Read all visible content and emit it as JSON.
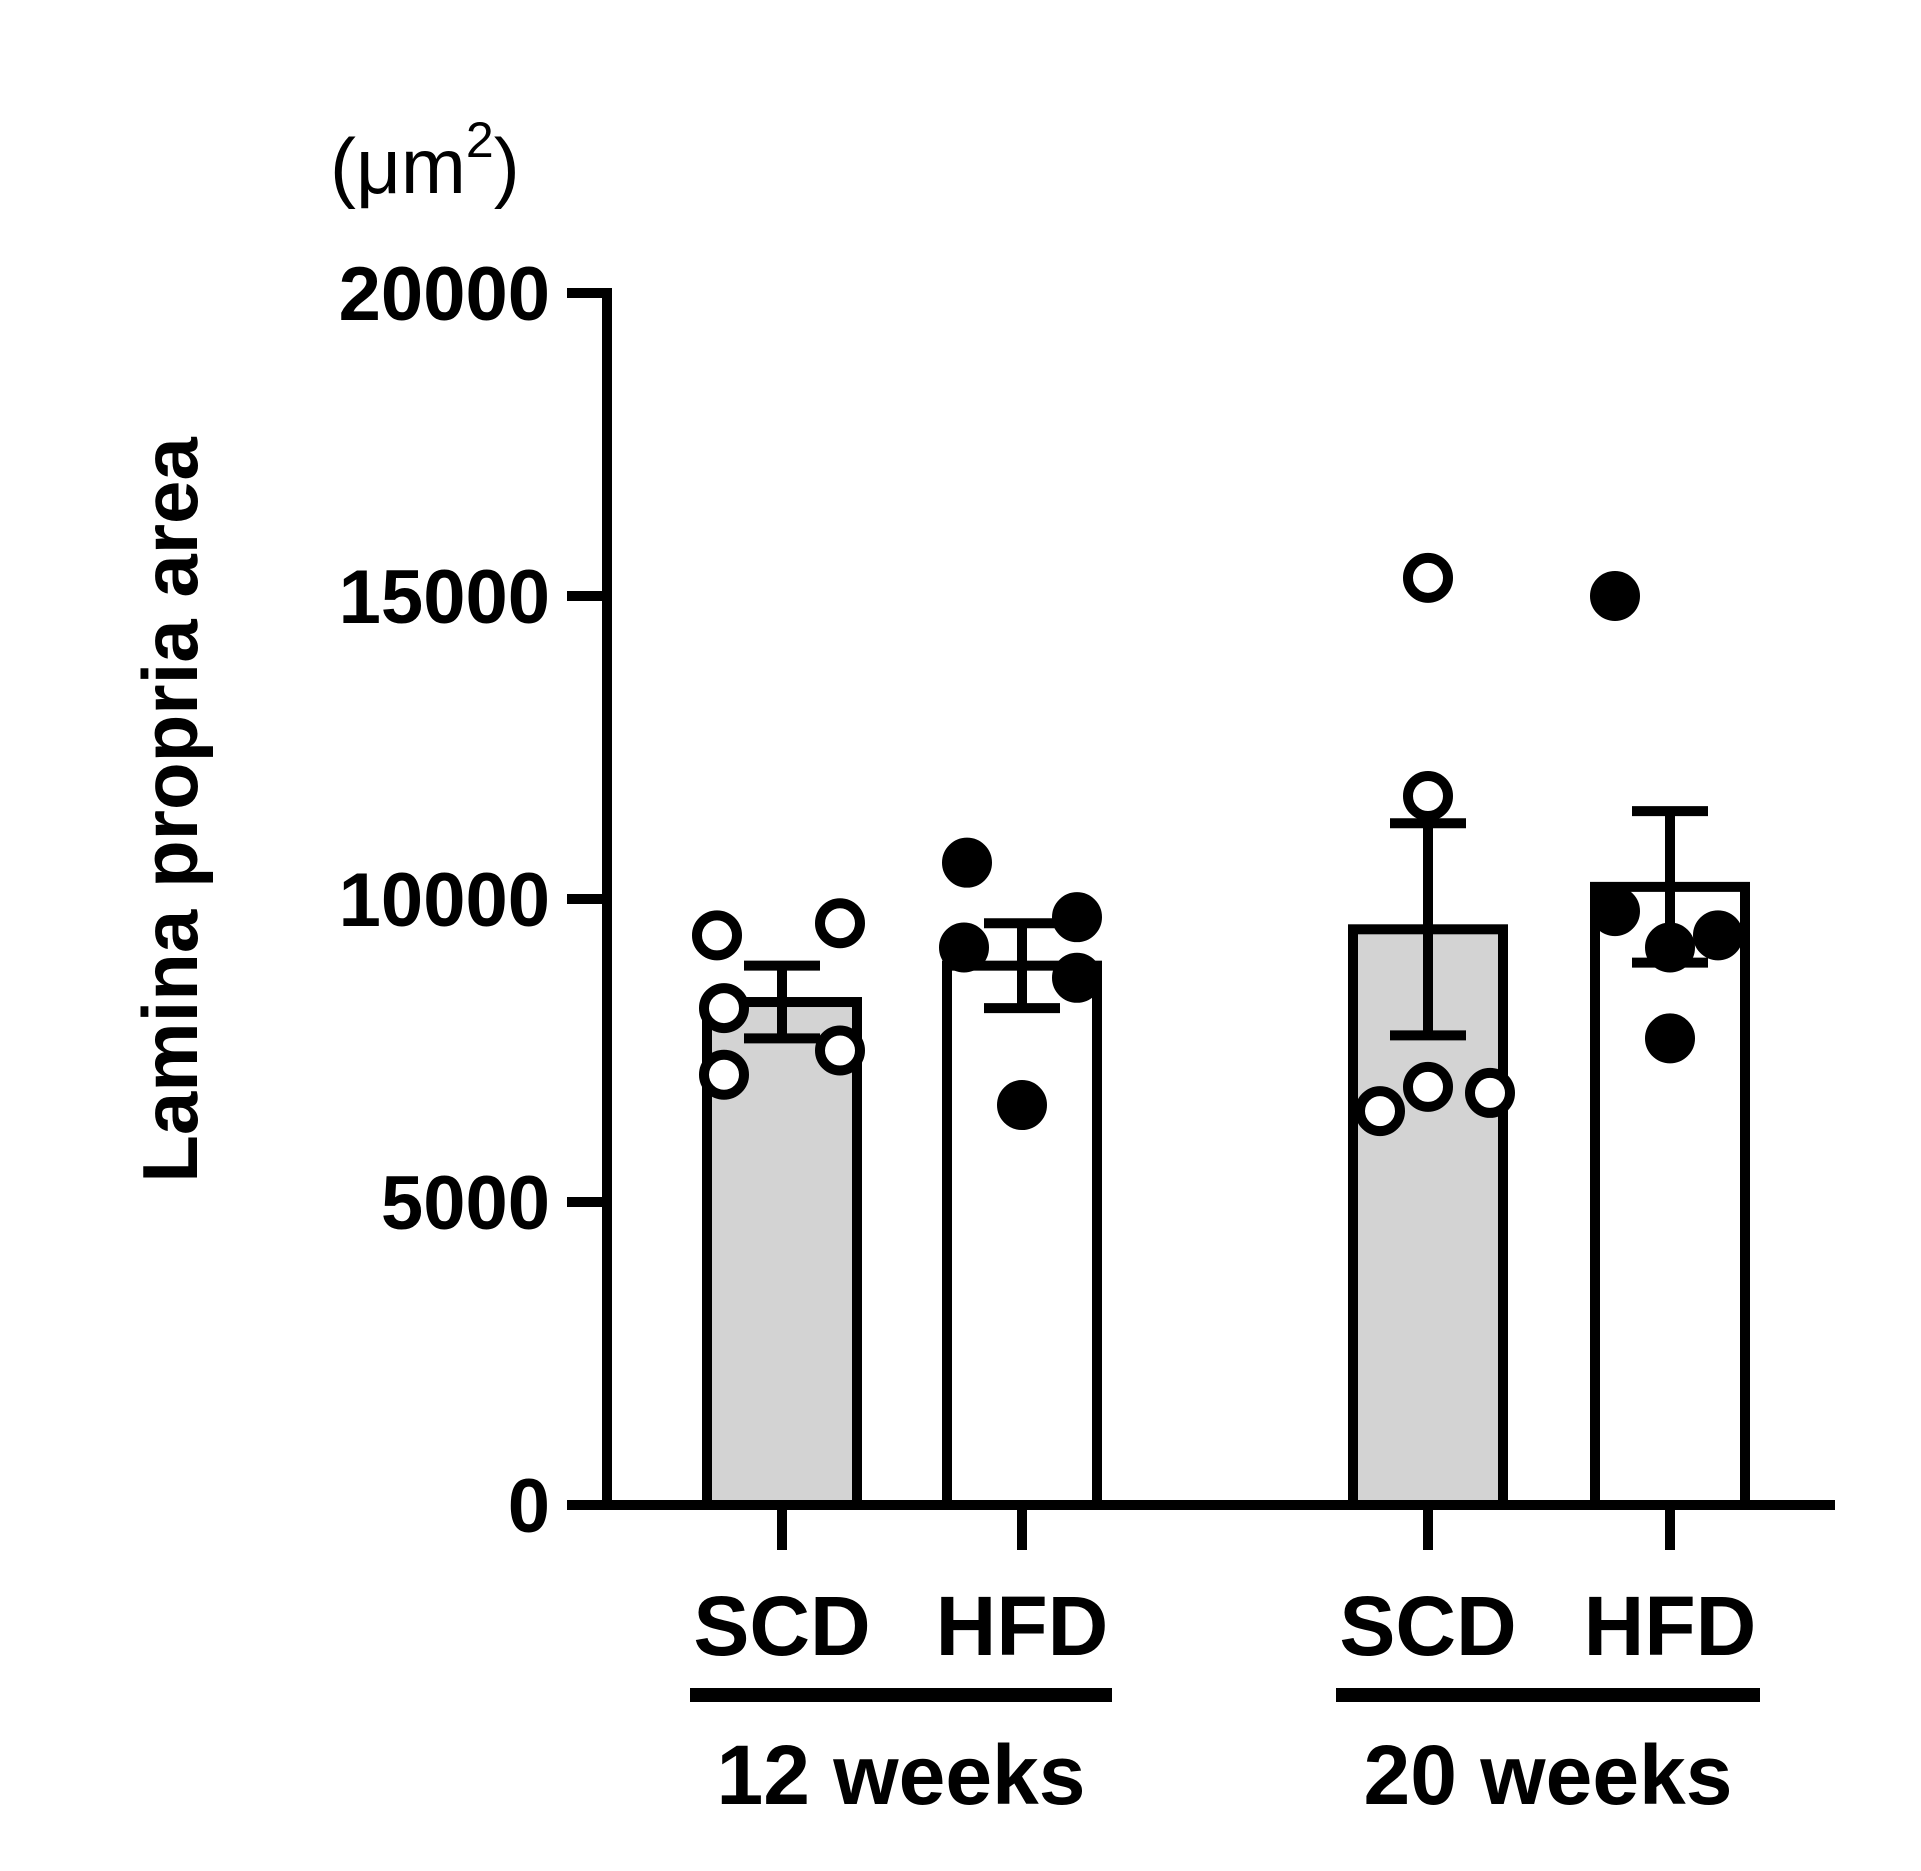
{
  "chart_data": {
    "type": "bar",
    "ylabel": "Lamina propria area",
    "unit": {
      "prefix": "(μm",
      "superscript": "2",
      "suffix": ")"
    },
    "ylim": [
      0,
      20000
    ],
    "yticks": [
      0,
      5000,
      10000,
      15000,
      20000
    ],
    "ytick_labels": [
      "0",
      "5000",
      "10000",
      "15000",
      "20000"
    ],
    "categories": [
      "SCD",
      "HFD",
      "SCD",
      "HFD"
    ],
    "groups": [
      {
        "label": "12 weeks",
        "members": [
          0,
          1
        ]
      },
      {
        "label": "20 weeks",
        "members": [
          2,
          3
        ]
      }
    ],
    "series": [
      {
        "category": "SCD",
        "group": "12 weeks",
        "mean": 8300,
        "sem": 600,
        "fill": "#d3d3d3",
        "marker": "open-circle",
        "points": [
          9400,
          8200,
          7100,
          9600,
          7500
        ]
      },
      {
        "category": "HFD",
        "group": "12 weeks",
        "mean": 8900,
        "sem": 700,
        "fill": "#ffffff",
        "marker": "filled-circle",
        "points": [
          10600,
          9200,
          6600,
          9700,
          8700
        ]
      },
      {
        "category": "SCD",
        "group": "20 weeks",
        "mean": 9500,
        "sem": 1750,
        "fill": "#d3d3d3",
        "marker": "open-circle",
        "points": [
          15300,
          11700,
          6500,
          6900,
          6800
        ]
      },
      {
        "category": "HFD",
        "group": "20 weeks",
        "mean": 10200,
        "sem": 1250,
        "fill": "#ffffff",
        "marker": "filled-circle",
        "points": [
          15000,
          9800,
          9200,
          7700,
          9400
        ]
      }
    ],
    "grid": false,
    "legend": "none",
    "colors": {
      "axis": "#000000",
      "bar_scd": "#d3d3d3",
      "bar_hfd": "#ffffff"
    }
  }
}
